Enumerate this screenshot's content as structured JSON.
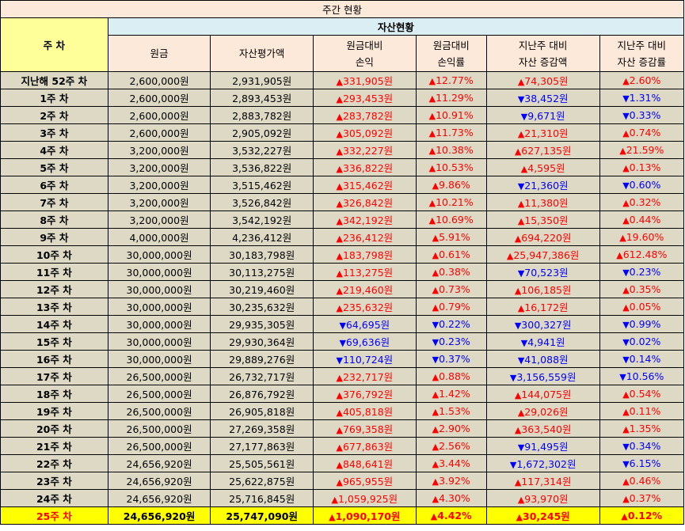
{
  "title": "주간 현황",
  "week_header": "주 차",
  "asset_header": "자산현황",
  "columns": [
    "원금",
    "자산평가액",
    "원금대비\n손익",
    "원금대비\n손익률",
    "지난주 대비\n자산 증감액",
    "지난주 대비\n자산 증감률"
  ],
  "up_color": "#ff0000",
  "down_color": "#0000ff",
  "rows": [
    {
      "week": "지난해 52주 차",
      "principal": "2,600,000원",
      "valuation": "2,931,905원",
      "pl": "331,905원",
      "pl_dir": "up",
      "plr": "12.77%",
      "plr_dir": "up",
      "chg": "74,305원",
      "chg_dir": "up",
      "chgr": "2.60%",
      "chgr_dir": "up"
    },
    {
      "week": "1주 차",
      "principal": "2,600,000원",
      "valuation": "2,893,453원",
      "pl": "293,453원",
      "pl_dir": "up",
      "plr": "11.29%",
      "plr_dir": "up",
      "chg": "38,452원",
      "chg_dir": "down",
      "chgr": "1.31%",
      "chgr_dir": "down"
    },
    {
      "week": "2주 차",
      "principal": "2,600,000원",
      "valuation": "2,883,782원",
      "pl": "283,782원",
      "pl_dir": "up",
      "plr": "10.91%",
      "plr_dir": "up",
      "chg": "9,671원",
      "chg_dir": "down",
      "chgr": "0.33%",
      "chgr_dir": "down"
    },
    {
      "week": "3주 차",
      "principal": "2,600,000원",
      "valuation": "2,905,092원",
      "pl": "305,092원",
      "pl_dir": "up",
      "plr": "11.73%",
      "plr_dir": "up",
      "chg": "21,310원",
      "chg_dir": "up",
      "chgr": "0.74%",
      "chgr_dir": "up"
    },
    {
      "week": "4주 차",
      "principal": "3,200,000원",
      "valuation": "3,532,227원",
      "pl": "332,227원",
      "pl_dir": "up",
      "plr": "10.38%",
      "plr_dir": "up",
      "chg": "627,135원",
      "chg_dir": "up",
      "chgr": "21.59%",
      "chgr_dir": "up"
    },
    {
      "week": "5주 차",
      "principal": "3,200,000원",
      "valuation": "3,536,822원",
      "pl": "336,822원",
      "pl_dir": "up",
      "plr": "10.53%",
      "plr_dir": "up",
      "chg": "4,595원",
      "chg_dir": "up",
      "chgr": "0.13%",
      "chgr_dir": "up"
    },
    {
      "week": "6주 차",
      "principal": "3,200,000원",
      "valuation": "3,515,462원",
      "pl": "315,462원",
      "pl_dir": "up",
      "plr": "9.86%",
      "plr_dir": "up",
      "chg": "21,360원",
      "chg_dir": "down",
      "chgr": "0.60%",
      "chgr_dir": "down"
    },
    {
      "week": "7주 차",
      "principal": "3,200,000원",
      "valuation": "3,526,842원",
      "pl": "326,842원",
      "pl_dir": "up",
      "plr": "10.21%",
      "plr_dir": "up",
      "chg": "11,380원",
      "chg_dir": "up",
      "chgr": "0.32%",
      "chgr_dir": "up"
    },
    {
      "week": "8주 차",
      "principal": "3,200,000원",
      "valuation": "3,542,192원",
      "pl": "342,192원",
      "pl_dir": "up",
      "plr": "10.69%",
      "plr_dir": "up",
      "chg": "15,350원",
      "chg_dir": "up",
      "chgr": "0.44%",
      "chgr_dir": "up"
    },
    {
      "week": "9주 차",
      "principal": "4,000,000원",
      "valuation": "4,236,412원",
      "pl": "236,412원",
      "pl_dir": "up",
      "plr": "5.91%",
      "plr_dir": "up",
      "chg": "694,220원",
      "chg_dir": "up",
      "chgr": "19.60%",
      "chgr_dir": "up"
    },
    {
      "week": "10주 차",
      "principal": "30,000,000원",
      "valuation": "30,183,798원",
      "pl": "183,798원",
      "pl_dir": "up",
      "plr": "0.61%",
      "plr_dir": "up",
      "chg": "25,947,386원",
      "chg_dir": "up",
      "chgr": "612.48%",
      "chgr_dir": "up"
    },
    {
      "week": "11주 차",
      "principal": "30,000,000원",
      "valuation": "30,113,275원",
      "pl": "113,275원",
      "pl_dir": "up",
      "plr": "0.38%",
      "plr_dir": "up",
      "chg": "70,523원",
      "chg_dir": "down",
      "chgr": "0.23%",
      "chgr_dir": "down"
    },
    {
      "week": "12주 차",
      "principal": "30,000,000원",
      "valuation": "30,219,460원",
      "pl": "219,460원",
      "pl_dir": "up",
      "plr": "0.73%",
      "plr_dir": "up",
      "chg": "106,185원",
      "chg_dir": "up",
      "chgr": "0.35%",
      "chgr_dir": "up"
    },
    {
      "week": "13주 차",
      "principal": "30,000,000원",
      "valuation": "30,235,632원",
      "pl": "235,632원",
      "pl_dir": "up",
      "plr": "0.79%",
      "plr_dir": "up",
      "chg": "16,172원",
      "chg_dir": "up",
      "chgr": "0.05%",
      "chgr_dir": "up"
    },
    {
      "week": "14주 차",
      "principal": "30,000,000원",
      "valuation": "29,935,305원",
      "pl": "64,695원",
      "pl_dir": "down",
      "plr": "0.22%",
      "plr_dir": "down",
      "chg": "300,327원",
      "chg_dir": "down",
      "chgr": "0.99%",
      "chgr_dir": "down"
    },
    {
      "week": "15주 차",
      "principal": "30,000,000원",
      "valuation": "29,930,364원",
      "pl": "69,636원",
      "pl_dir": "down",
      "plr": "0.23%",
      "plr_dir": "down",
      "chg": "4,941원",
      "chg_dir": "down",
      "chgr": "0.02%",
      "chgr_dir": "down"
    },
    {
      "week": "16주 차",
      "principal": "30,000,000원",
      "valuation": "29,889,276원",
      "pl": "110,724원",
      "pl_dir": "down",
      "plr": "0.37%",
      "plr_dir": "down",
      "chg": "41,088원",
      "chg_dir": "down",
      "chgr": "0.14%",
      "chgr_dir": "down"
    },
    {
      "week": "17주 차",
      "principal": "26,500,000원",
      "valuation": "26,732,717원",
      "pl": "232,717원",
      "pl_dir": "up",
      "plr": "0.88%",
      "plr_dir": "up",
      "chg": "3,156,559원",
      "chg_dir": "down",
      "chgr": "10.56%",
      "chgr_dir": "down"
    },
    {
      "week": "18주 차",
      "principal": "26,500,000원",
      "valuation": "26,876,792원",
      "pl": "376,792원",
      "pl_dir": "up",
      "plr": "1.42%",
      "plr_dir": "up",
      "chg": "144,075원",
      "chg_dir": "up",
      "chgr": "0.54%",
      "chgr_dir": "up"
    },
    {
      "week": "19주 차",
      "principal": "26,500,000원",
      "valuation": "26,905,818원",
      "pl": "405,818원",
      "pl_dir": "up",
      "plr": "1.53%",
      "plr_dir": "up",
      "chg": "29,026원",
      "chg_dir": "up",
      "chgr": "0.11%",
      "chgr_dir": "up"
    },
    {
      "week": "20주 차",
      "principal": "26,500,000원",
      "valuation": "27,269,358원",
      "pl": "769,358원",
      "pl_dir": "up",
      "plr": "2.90%",
      "plr_dir": "up",
      "chg": "363,540원",
      "chg_dir": "up",
      "chgr": "1.35%",
      "chgr_dir": "up"
    },
    {
      "week": "21주 차",
      "principal": "26,500,000원",
      "valuation": "27,177,863원",
      "pl": "677,863원",
      "pl_dir": "up",
      "plr": "2.56%",
      "plr_dir": "up",
      "chg": "91,495원",
      "chg_dir": "down",
      "chgr": "0.34%",
      "chgr_dir": "down"
    },
    {
      "week": "22주 차",
      "principal": "24,656,920원",
      "valuation": "25,505,561원",
      "pl": "848,641원",
      "pl_dir": "up",
      "plr": "3.44%",
      "plr_dir": "up",
      "chg": "1,672,302원",
      "chg_dir": "down",
      "chgr": "6.15%",
      "chgr_dir": "down"
    },
    {
      "week": "23주 차",
      "principal": "24,656,920원",
      "valuation": "25,622,875원",
      "pl": "965,955원",
      "pl_dir": "up",
      "plr": "3.92%",
      "plr_dir": "up",
      "chg": "117,314원",
      "chg_dir": "up",
      "chgr": "0.46%",
      "chgr_dir": "up"
    },
    {
      "week": "24주 차",
      "principal": "24,656,920원",
      "valuation": "25,716,845원",
      "pl": "1,059,925원",
      "pl_dir": "up",
      "plr": "4.30%",
      "plr_dir": "up",
      "chg": "93,970원",
      "chg_dir": "up",
      "chgr": "0.37%",
      "chgr_dir": "up"
    },
    {
      "week": "25주 차",
      "principal": "24,656,920원",
      "valuation": "25,747,090원",
      "pl": "1,090,170원",
      "pl_dir": "up",
      "plr": "4.42%",
      "plr_dir": "up",
      "chg": "30,245원",
      "chg_dir": "up",
      "chgr": "0.12%",
      "chgr_dir": "up"
    }
  ]
}
